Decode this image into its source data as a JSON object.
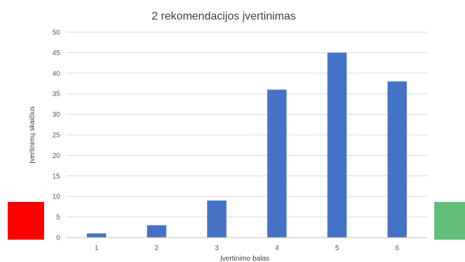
{
  "chart_data": {
    "type": "bar",
    "title": "2 rekomendacijos įvertinimas",
    "xlabel": "Įvertinimo balas",
    "ylabel": "Įvertinimų skaičius",
    "categories": [
      "1",
      "2",
      "3",
      "4",
      "5",
      "6"
    ],
    "values": [
      1,
      3,
      9,
      36,
      45,
      38
    ],
    "ylim": [
      0,
      50
    ],
    "yticks": [
      "0",
      "5",
      "10",
      "15",
      "20",
      "25",
      "30",
      "35",
      "40",
      "45",
      "50"
    ],
    "grid": true,
    "legend": "none",
    "bar_color": "#4472C4"
  },
  "markers": {
    "left_color": "#FF0000",
    "right_color": "#63BE7B"
  }
}
